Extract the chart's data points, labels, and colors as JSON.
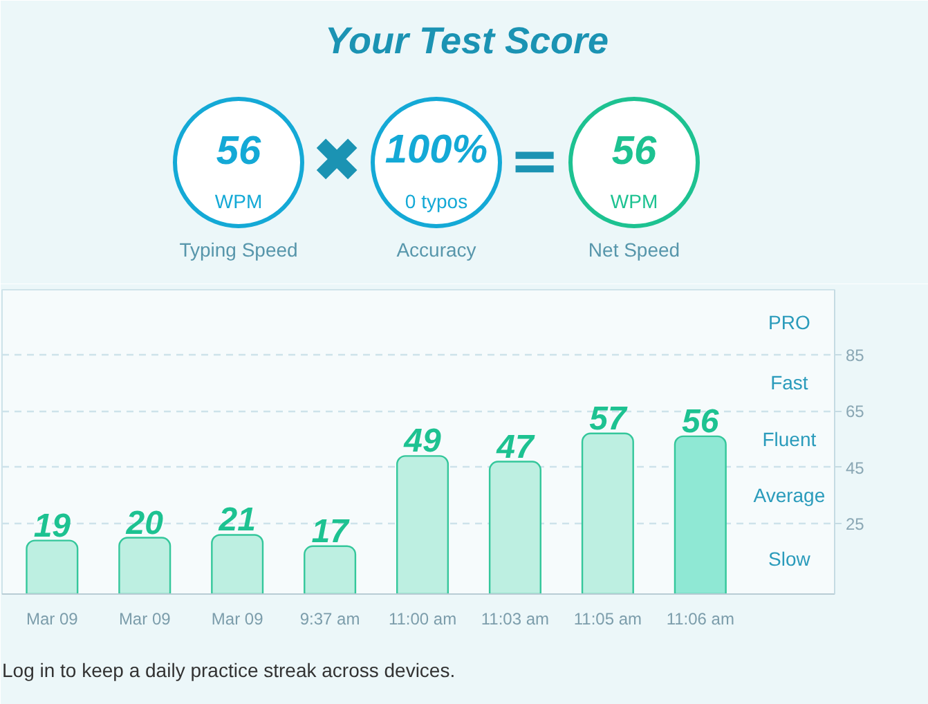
{
  "chart_data": [
    {
      "type": "other",
      "title": "Your Test Score",
      "annotations": [
        "56",
        "WPM",
        "Typing Speed",
        "✖",
        "100%",
        "0 typos",
        "Accuracy",
        "=",
        "56",
        "WPM",
        "Net Speed"
      ]
    },
    {
      "type": "bar",
      "categories": [
        "Mar 09",
        "Mar 09",
        "Mar 09",
        "9:37 am",
        "11:00 am",
        "11:03 am",
        "11:05 am",
        "11:06 am"
      ],
      "values": [
        19,
        20,
        21,
        17,
        49,
        47,
        57,
        56
      ],
      "colors": [
        "#bdefe1",
        "#bdefe1",
        "#bdefe1",
        "#bdefe1",
        "#bdefe1",
        "#bdefe1",
        "#bdefe1",
        "#8fe8d4"
      ],
      "data_labels": true,
      "ylim": [
        0,
        108
      ],
      "yticks": [
        25,
        45,
        65,
        85
      ],
      "grid": "y",
      "annotations": [
        "PRO",
        "Fast",
        "Fluent",
        "Average",
        "Slow",
        "Log in to keep a daily practice streak across devices."
      ]
    }
  ]
}
